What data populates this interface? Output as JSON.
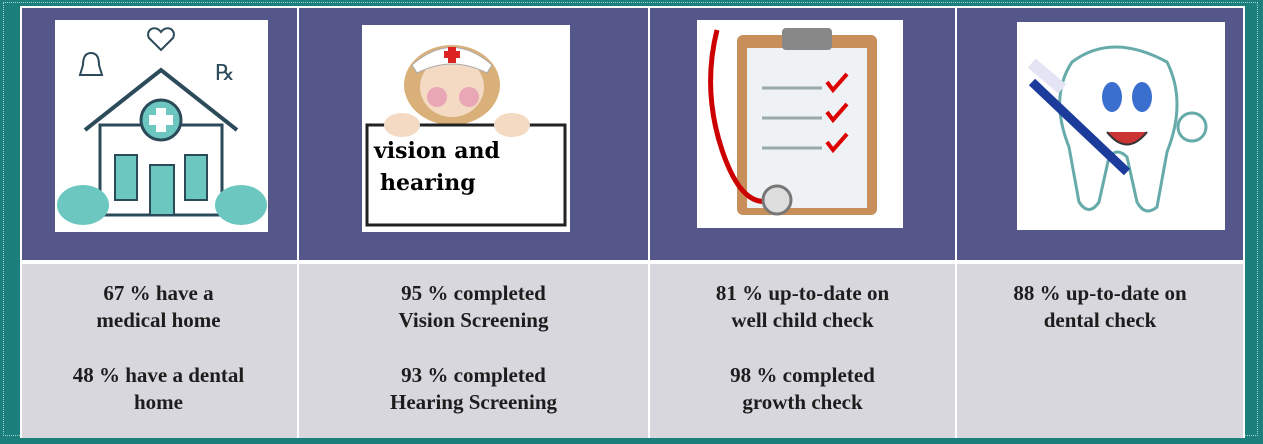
{
  "cells": [
    {
      "stats": [
        [
          "67 %  have a",
          "medical home"
        ],
        [
          "48 %  have a dental",
          "home"
        ]
      ]
    },
    {
      "sign_text": [
        "vision and",
        "hearing"
      ],
      "stats": [
        [
          "95 %  completed",
          "Vision Screening"
        ],
        [
          "93 %  completed",
          "Hearing Screening"
        ]
      ]
    },
    {
      "stats": [
        [
          "81 %  up-to-date on",
          "well child check"
        ],
        [
          "98 %  completed",
          "growth check"
        ]
      ]
    },
    {
      "stats": [
        [
          "88 %  up-to-date on",
          "dental check"
        ]
      ]
    }
  ]
}
